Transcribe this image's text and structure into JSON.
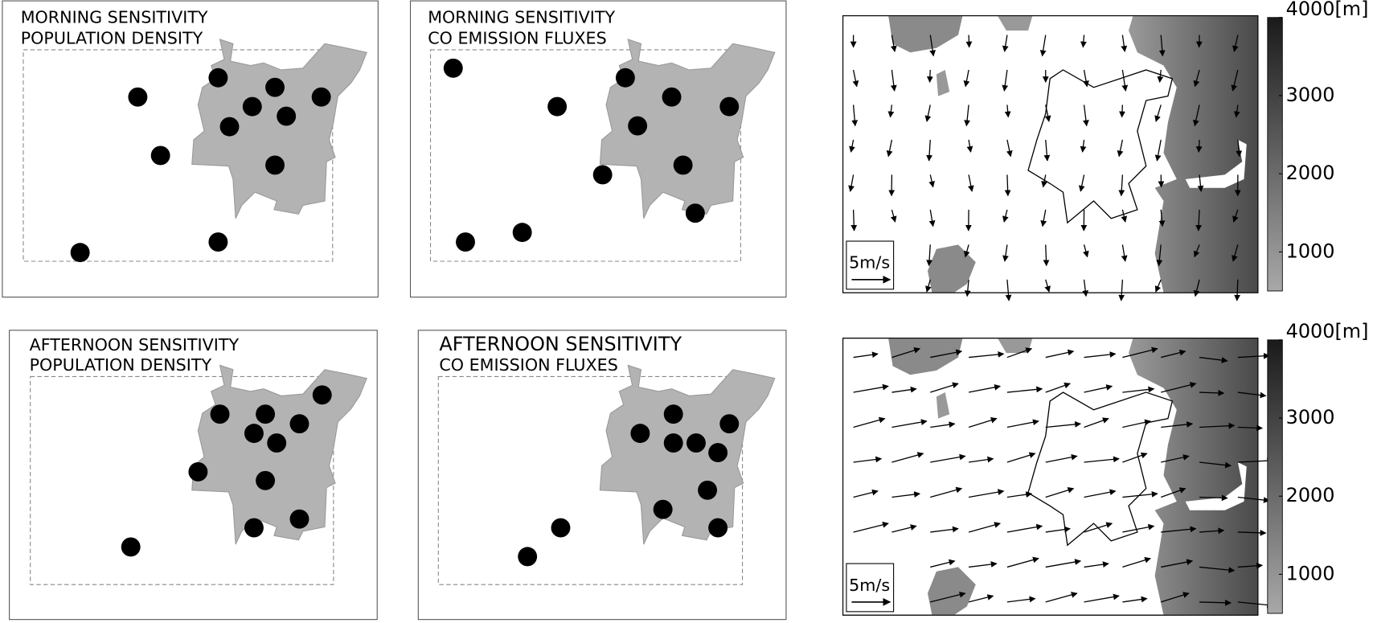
{
  "panels": [
    {
      "title": [
        "MORNING SENSITIVITY",
        "POPULATION DENSITY"
      ]
    },
    {
      "title": [
        "MORNING SENSITIVITY",
        "CO EMISSION FLUXES"
      ]
    },
    {
      "title": [
        "AFTERNOON SENSITIVITY",
        "POPULATION DENSITY"
      ]
    },
    {
      "title": [
        "AFTERNOON SENSITIVITY",
        "CO EMISSION FLUXES"
      ]
    }
  ],
  "wind_maps": [
    {
      "scale_label": "5m/s",
      "colorbar": {
        "lim": [
          500,
          4000
        ],
        "ticks": [
          1000,
          2000,
          3000,
          {
            "value": 4000,
            "label": "4000[m]"
          }
        ]
      }
    },
    {
      "scale_label": "5m/s",
      "colorbar": {
        "lim": [
          500,
          4000
        ],
        "ticks": [
          1000,
          2000,
          3000,
          {
            "value": 4000,
            "label": "4000[m]"
          }
        ]
      }
    }
  ]
}
